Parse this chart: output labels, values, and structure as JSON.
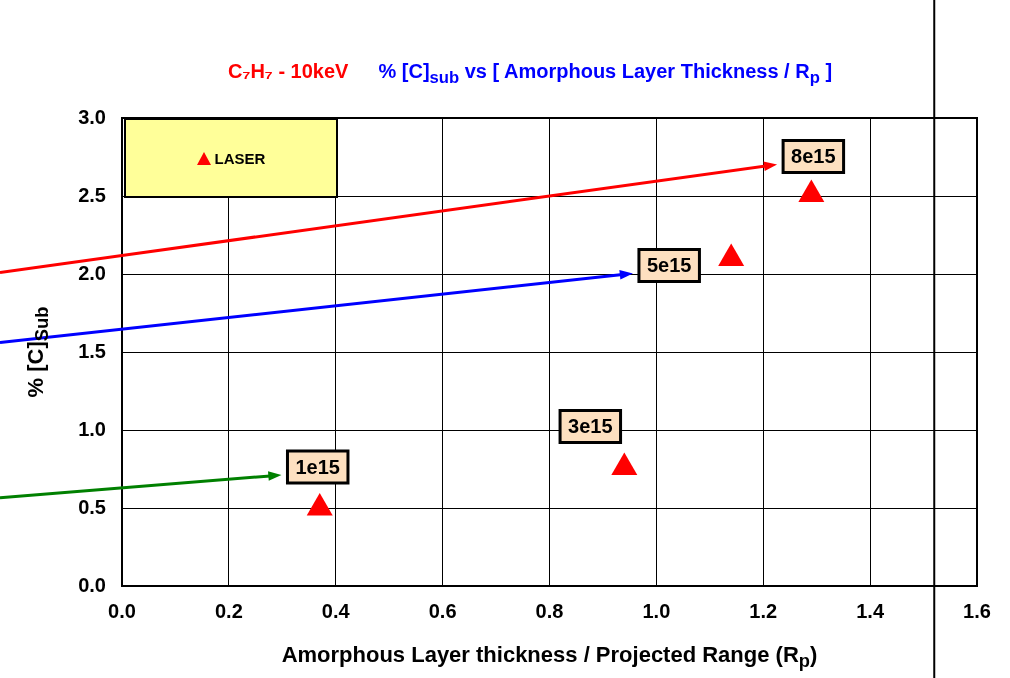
{
  "chart_data": {
    "type": "scatter",
    "title": "C₇H₇ - 10keV",
    "subtitle": "% [C]$_{sub}$ vs  [ Amorphous Layer Thickness / R$_{p}$ ]",
    "xlabel": "Amorphous Layer thickness / Projected Range (R$_{p}$)",
    "ylabel": "% [C]$_{Sub}$",
    "x": [
      0.37,
      0.94,
      1.14,
      1.29
    ],
    "series": [
      {
        "name": "LASER",
        "color": "#ff0000",
        "values": [
          0.5,
          0.76,
          2.1,
          2.51
        ]
      }
    ],
    "xlim": [
      0,
      1.6
    ],
    "xticks": [
      {
        "value": 0,
        "label": "0.0"
      },
      0.2,
      0.4,
      0.6,
      0.8,
      {
        "value": 1,
        "label": "1.0"
      },
      1.2,
      1.4,
      1.6
    ],
    "ylim": [
      0,
      3
    ],
    "yticks": [
      {
        "value": 0,
        "label": "0.0"
      },
      0.5,
      {
        "value": 1,
        "label": "1.0"
      },
      1.5,
      {
        "value": 2,
        "label": "2.0"
      },
      2.5,
      {
        "value": 3,
        "label": "3.0"
      }
    ],
    "annotations": [
      {
        "text": "8e15",
        "x": 1.29,
        "y": 2.51
      },
      {
        "text": "5e15",
        "x": 1.14,
        "y": 2.1
      },
      {
        "text": "3e15",
        "x": 0.94,
        "y": 0.76
      },
      {
        "text": "1e15",
        "x": 0.37,
        "y": 0.5
      }
    ],
    "ref_lines": [
      {
        "axis": "x",
        "value": 1.52,
        "color": "#000000"
      }
    ],
    "grid": true,
    "legend": "top left",
    "marker": "triangle"
  }
}
